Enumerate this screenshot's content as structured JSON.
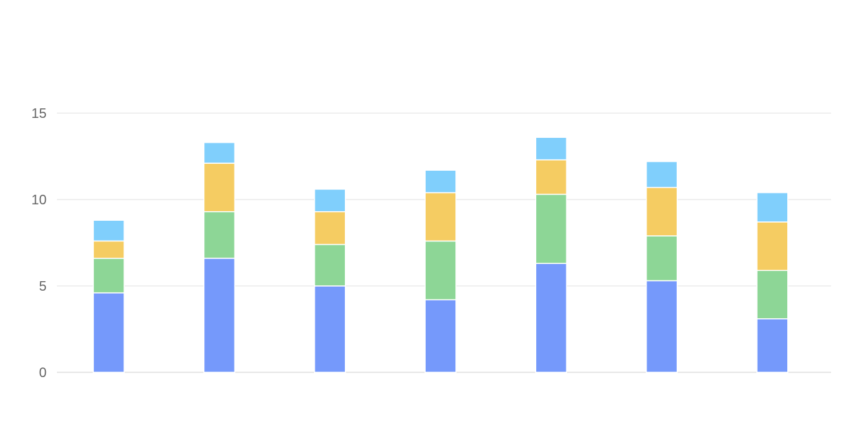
{
  "chart_data": {
    "type": "bar",
    "stacked": true,
    "title": "",
    "xlabel": "",
    "ylabel": "",
    "categories": [
      "",
      "",
      "",
      "",
      "",
      "",
      ""
    ],
    "ylim": [
      0,
      15
    ],
    "yticks": [
      0,
      5,
      10,
      15
    ],
    "grid": true,
    "legend": "top-right",
    "series": [
      {
        "color": "#7599fb",
        "values": [
          4.6,
          6.6,
          5.0,
          4.2,
          6.3,
          5.3,
          3.1
        ]
      },
      {
        "color": "#8dd696",
        "values": [
          2.0,
          2.7,
          2.4,
          3.4,
          4.0,
          2.6,
          2.8
        ]
      },
      {
        "color": "#f5cc62",
        "values": [
          1.0,
          2.8,
          1.9,
          2.8,
          2.0,
          2.8,
          2.8
        ]
      },
      {
        "color": "#80cffc",
        "values": [
          1.2,
          1.2,
          1.3,
          1.3,
          1.3,
          1.5,
          1.7
        ]
      }
    ]
  }
}
